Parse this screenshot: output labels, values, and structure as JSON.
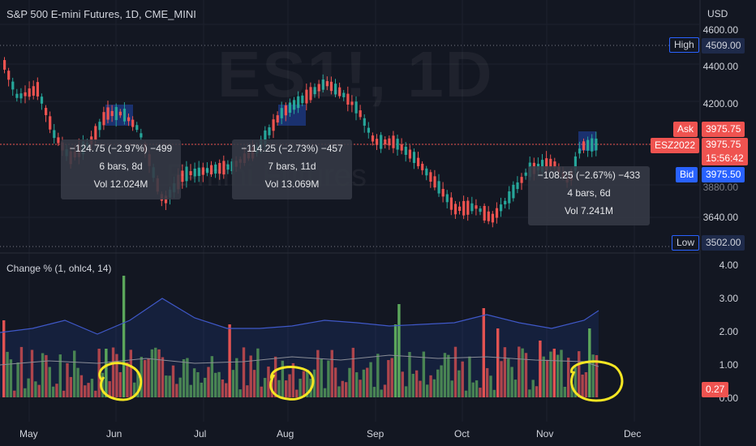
{
  "header": {
    "title": "S&P 500 E-mini Futures, 1D, CME_MINI",
    "currency": "USD"
  },
  "watermark": {
    "symbol": "ES1!, 1D",
    "name": "E-mini Futures"
  },
  "price_axis": {
    "ticks": [
      "4600.00",
      "4400.00",
      "4200.00",
      "3640.00"
    ],
    "partial_tick": "3880.00",
    "high_label": "High",
    "high_value": "4509.00",
    "low_label": "Low",
    "low_value": "3502.00",
    "ask_label": "Ask",
    "ask_value": "3975.75",
    "symbol_tag": "ESZ2022",
    "symbol_price": "3975.75",
    "countdown": "15:56:42",
    "bid_label": "Bid",
    "bid_value": "3975.50"
  },
  "indicator": {
    "legend": "Change % (1, ohlc4, 14)",
    "ticks": [
      "4.00",
      "3.00",
      "2.00",
      "1.00",
      "0.00"
    ],
    "current_value": "0.27"
  },
  "time_axis": {
    "labels": [
      "May",
      "Jun",
      "Jul",
      "Aug",
      "Sep",
      "Oct",
      "Nov",
      "Dec"
    ]
  },
  "measurements": [
    {
      "line1": "−124.75 (−2.97%) −499",
      "line2": "6 bars, 8d",
      "line3": "Vol 12.024M"
    },
    {
      "line1": "−114.25 (−2.73%) −457",
      "line2": "7 bars, 11d",
      "line3": "Vol 13.069M"
    },
    {
      "line1": "−108.25 (−2.67%) −433",
      "line2": "4 bars, 6d",
      "line3": "Vol 7.241M"
    }
  ],
  "colors": {
    "up": "#26a69a",
    "down": "#ef5350",
    "bg": "#131722",
    "ask": "#ef5350",
    "bid": "#2962ff",
    "annotation": "#f5e623"
  }
}
